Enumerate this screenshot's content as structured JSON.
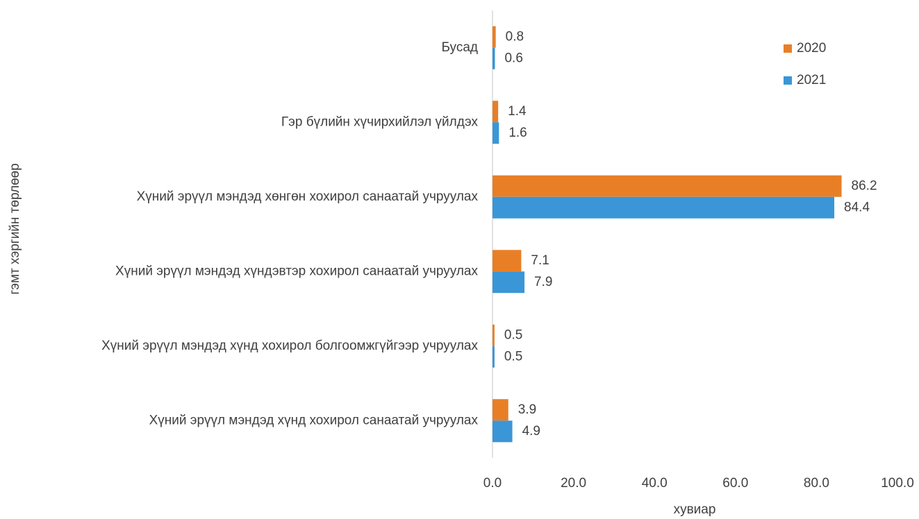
{
  "chart_data": {
    "type": "bar",
    "orientation": "horizontal",
    "categories": [
      "Бусад",
      "Гэр бүлийн хүчирхийлэл үйлдэх",
      "Хүний эрүүл мэндэд хөнгөн хохирол санаатай учруулах",
      "Хүний эрүүл мэндэд хүндэвтэр хохирол санаатай учруулах",
      "Хүний эрүүл мэндэд хүнд хохирол болгоомжгүйгээр учруулах",
      "Хүний эрүүл мэндэд хүнд хохирол санаатай учруулах"
    ],
    "series": [
      {
        "name": "2020",
        "color": "#e87f27",
        "values": [
          0.8,
          1.4,
          86.2,
          7.1,
          0.5,
          3.9
        ]
      },
      {
        "name": "2021",
        "color": "#3a96d6",
        "values": [
          0.6,
          1.6,
          84.4,
          7.9,
          0.5,
          4.9
        ]
      }
    ],
    "xlabel": "хувиар",
    "ylabel": "гэмт хэргийн төрлөөр",
    "xlim": [
      0,
      100
    ],
    "xticks": [
      {
        "value": 0,
        "label": "0.0"
      },
      {
        "value": 20,
        "label": "20.0"
      },
      {
        "value": 40,
        "label": "40.0"
      },
      {
        "value": 60,
        "label": "60.0"
      },
      {
        "value": 80,
        "label": "80.0"
      },
      {
        "value": 100,
        "label": "100.0"
      }
    ],
    "grid": false,
    "legend": "upper right"
  }
}
